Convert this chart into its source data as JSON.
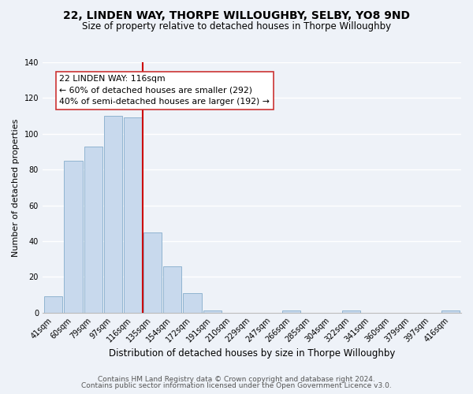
{
  "title": "22, LINDEN WAY, THORPE WILLOUGHBY, SELBY, YO8 9ND",
  "subtitle": "Size of property relative to detached houses in Thorpe Willoughby",
  "xlabel": "Distribution of detached houses by size in Thorpe Willoughby",
  "ylabel": "Number of detached properties",
  "bar_labels": [
    "41sqm",
    "60sqm",
    "79sqm",
    "97sqm",
    "116sqm",
    "135sqm",
    "154sqm",
    "172sqm",
    "191sqm",
    "210sqm",
    "229sqm",
    "247sqm",
    "266sqm",
    "285sqm",
    "304sqm",
    "322sqm",
    "341sqm",
    "360sqm",
    "379sqm",
    "397sqm",
    "416sqm"
  ],
  "bar_values": [
    9,
    85,
    93,
    110,
    109,
    45,
    26,
    11,
    1,
    0,
    0,
    0,
    1,
    0,
    0,
    1,
    0,
    0,
    0,
    0,
    1
  ],
  "bar_color": "#c8d9ed",
  "bar_edge_color": "#90b4d0",
  "vline_color": "#cc0000",
  "annotation_title": "22 LINDEN WAY: 116sqm",
  "annotation_line1": "← 60% of detached houses are smaller (292)",
  "annotation_line2": "40% of semi-detached houses are larger (192) →",
  "annotation_box_color": "#ffffff",
  "annotation_box_edge": "#cc3333",
  "ylim": [
    0,
    140
  ],
  "yticks": [
    0,
    20,
    40,
    60,
    80,
    100,
    120,
    140
  ],
  "footer1": "Contains HM Land Registry data © Crown copyright and database right 2024.",
  "footer2": "Contains public sector information licensed under the Open Government Licence v3.0.",
  "background_color": "#eef2f8",
  "title_fontsize": 10,
  "subtitle_fontsize": 8.5,
  "xlabel_fontsize": 8.5,
  "ylabel_fontsize": 8,
  "tick_fontsize": 7,
  "annotation_fontsize": 7.8,
  "footer_fontsize": 6.5
}
